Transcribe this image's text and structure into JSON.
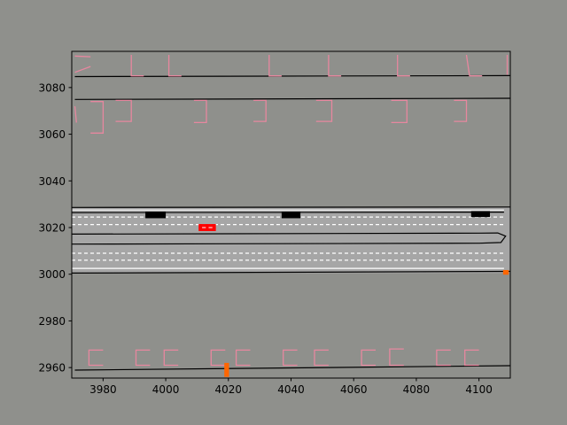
{
  "chart_data": {
    "type": "scatter",
    "title": "",
    "xlabel": "",
    "ylabel": "",
    "xlim": [
      3970,
      4110
    ],
    "ylim": [
      2955.5,
      3095.5
    ],
    "grid": false,
    "colors": {
      "background": "#8f908c",
      "road": "#a6a6a6",
      "road_edge": "#000000",
      "lane_divider": "#ffffff",
      "parking": "#e7879f",
      "ego_vehicle": "#ff0000",
      "other_vehicle": "#000000",
      "pedestrian": "#ff6600"
    },
    "x_ticks": [
      {
        "value": 3980,
        "label": "3980"
      },
      {
        "value": 4000,
        "label": "4000"
      },
      {
        "value": 4020,
        "label": "4020"
      },
      {
        "value": 4040,
        "label": "4040"
      },
      {
        "value": 4060,
        "label": "4060"
      },
      {
        "value": 4080,
        "label": "4080"
      },
      {
        "value": 4100,
        "label": "4100"
      }
    ],
    "y_ticks": [
      {
        "value": 2960,
        "label": "2960"
      },
      {
        "value": 2980,
        "label": "2980"
      },
      {
        "value": 3000,
        "label": "3000"
      },
      {
        "value": 3020,
        "label": "3020"
      },
      {
        "value": 3040,
        "label": "3040"
      },
      {
        "value": 3060,
        "label": "3060"
      },
      {
        "value": 3080,
        "label": "3080"
      }
    ],
    "road_band": {
      "x": [
        3970,
        4110
      ],
      "y": [
        3000.5,
        3028.6
      ]
    },
    "road_edges": [
      {
        "points": [
          [
            3971,
            3084.7
          ],
          [
            4110,
            3085.1
          ]
        ]
      },
      {
        "points": [
          [
            3971,
            3074.9
          ],
          [
            4110,
            3075.4
          ]
        ]
      },
      {
        "points": [
          [
            3970,
            3028.6
          ],
          [
            4110,
            3028.8
          ]
        ]
      },
      {
        "points": [
          [
            3970,
            3026.4
          ],
          [
            4108,
            3026.6
          ]
        ]
      },
      {
        "points": [
          [
            3970,
            3017.2
          ],
          [
            4100,
            3017.6
          ],
          [
            4106,
            3017.7
          ],
          [
            4108.5,
            3016.3
          ],
          [
            4107,
            3013.6
          ],
          [
            4100,
            3013.3
          ],
          [
            3970,
            3012.9
          ]
        ]
      },
      {
        "points": [
          [
            3970,
            3000.5
          ],
          [
            4110,
            3001.2
          ]
        ]
      },
      {
        "points": [
          [
            3971,
            2958.9
          ],
          [
            4110,
            2960.8
          ]
        ]
      }
    ],
    "lane_dividers": [
      {
        "style": "solid",
        "points": [
          [
            3970,
            3027.5
          ],
          [
            4108,
            3027.5
          ]
        ]
      },
      {
        "style": "dashed",
        "points": [
          [
            3970,
            3024.5
          ],
          [
            4108,
            3024.5
          ]
        ]
      },
      {
        "style": "dashed",
        "points": [
          [
            3970,
            3021.3
          ],
          [
            4108,
            3021.3
          ]
        ]
      },
      {
        "style": "dashed",
        "points": [
          [
            3970,
            3009.0
          ],
          [
            4108,
            3009.0
          ]
        ]
      },
      {
        "style": "dashed",
        "points": [
          [
            3970,
            3006.0
          ],
          [
            4108,
            3006.0
          ]
        ]
      },
      {
        "style": "solid",
        "points": [
          [
            3970,
            3002.5
          ],
          [
            4108,
            3002.5
          ]
        ]
      }
    ],
    "parking_lines": [
      {
        "points": [
          [
            3971,
            3093.5
          ],
          [
            3976,
            3093.2
          ]
        ]
      },
      {
        "points": [
          [
            3971,
            3086.5
          ],
          [
            3976,
            3089.0
          ]
        ]
      },
      {
        "points": [
          [
            3989,
            3094.0
          ],
          [
            3989,
            3085.0
          ],
          [
            3993,
            3085.0
          ]
        ]
      },
      {
        "points": [
          [
            4001,
            3094.0
          ],
          [
            4001,
            3085.0
          ],
          [
            4005,
            3085.0
          ]
        ]
      },
      {
        "points": [
          [
            4033,
            3094.0
          ],
          [
            4033,
            3085.0
          ],
          [
            4037,
            3085.0
          ]
        ]
      },
      {
        "points": [
          [
            4052,
            3094.0
          ],
          [
            4052,
            3085.0
          ],
          [
            4056,
            3085.0
          ]
        ]
      },
      {
        "points": [
          [
            4074,
            3094.0
          ],
          [
            4074,
            3085.0
          ],
          [
            4078,
            3085.0
          ]
        ]
      },
      {
        "points": [
          [
            4096,
            3094.0
          ],
          [
            4097,
            3085.0
          ],
          [
            4101,
            3085.0
          ]
        ]
      },
      {
        "points": [
          [
            4109,
            3094.0
          ],
          [
            4109,
            3085.5
          ]
        ]
      },
      {
        "points": [
          [
            3971,
            3072.0
          ],
          [
            3971.5,
            3065.0
          ]
        ]
      },
      {
        "points": [
          [
            3976,
            3074.0
          ],
          [
            3980,
            3074.0
          ],
          [
            3980,
            3060.5
          ],
          [
            3976,
            3060.5
          ]
        ]
      },
      {
        "points": [
          [
            3984,
            3074.5
          ],
          [
            3989,
            3074.5
          ],
          [
            3989,
            3065.5
          ],
          [
            3984,
            3065.5
          ]
        ]
      },
      {
        "points": [
          [
            4009,
            3074.5
          ],
          [
            4013,
            3074.5
          ],
          [
            4013,
            3065.0
          ],
          [
            4009,
            3065.0
          ]
        ]
      },
      {
        "points": [
          [
            4028,
            3074.5
          ],
          [
            4032,
            3074.5
          ],
          [
            4032,
            3065.5
          ],
          [
            4028,
            3065.5
          ]
        ]
      },
      {
        "points": [
          [
            4048,
            3074.5
          ],
          [
            4053,
            3074.5
          ],
          [
            4053,
            3065.5
          ],
          [
            4048,
            3065.5
          ]
        ]
      },
      {
        "points": [
          [
            4072,
            3074.5
          ],
          [
            4077,
            3074.5
          ],
          [
            4077,
            3065.0
          ],
          [
            4072,
            3065.0
          ]
        ]
      },
      {
        "points": [
          [
            4092,
            3074.5
          ],
          [
            4096,
            3074.5
          ],
          [
            4096,
            3065.5
          ],
          [
            4092,
            3065.5
          ]
        ]
      },
      {
        "points": [
          [
            3980,
            2961.0
          ],
          [
            3975.5,
            2961.0
          ],
          [
            3975.5,
            2967.5
          ],
          [
            3980,
            2967.5
          ]
        ]
      },
      {
        "points": [
          [
            3995,
            2961.0
          ],
          [
            3990.5,
            2961.0
          ],
          [
            3990.5,
            2967.5
          ],
          [
            3995,
            2967.5
          ]
        ]
      },
      {
        "points": [
          [
            4004,
            2961.0
          ],
          [
            3999.5,
            2961.0
          ],
          [
            3999.5,
            2967.5
          ],
          [
            4004,
            2967.5
          ]
        ]
      },
      {
        "points": [
          [
            4019,
            2961.0
          ],
          [
            4014.5,
            2961.0
          ],
          [
            4014.5,
            2967.5
          ],
          [
            4019,
            2967.5
          ]
        ]
      },
      {
        "points": [
          [
            4027,
            2961.0
          ],
          [
            4022.5,
            2961.0
          ],
          [
            4022.5,
            2967.5
          ],
          [
            4027,
            2967.5
          ]
        ]
      },
      {
        "points": [
          [
            4042,
            2961.0
          ],
          [
            4037.5,
            2961.0
          ],
          [
            4037.5,
            2967.5
          ],
          [
            4042,
            2967.5
          ]
        ]
      },
      {
        "points": [
          [
            4052,
            2961.0
          ],
          [
            4047.5,
            2961.0
          ],
          [
            4047.5,
            2967.5
          ],
          [
            4052,
            2967.5
          ]
        ]
      },
      {
        "points": [
          [
            4067,
            2961.0
          ],
          [
            4062.5,
            2961.0
          ],
          [
            4062.5,
            2967.5
          ],
          [
            4067,
            2967.5
          ]
        ]
      },
      {
        "points": [
          [
            4076,
            2961.0
          ],
          [
            4071.5,
            2961.0
          ],
          [
            4071.5,
            2968.0
          ],
          [
            4076,
            2968.0
          ]
        ]
      },
      {
        "points": [
          [
            4091,
            2961.0
          ],
          [
            4086.5,
            2961.0
          ],
          [
            4086.5,
            2967.5
          ],
          [
            4091,
            2967.5
          ]
        ]
      },
      {
        "points": [
          [
            4100,
            2961.0
          ],
          [
            4095.5,
            2961.0
          ],
          [
            4095.5,
            2967.5
          ],
          [
            4100,
            2967.5
          ]
        ]
      }
    ],
    "vehicles": [
      {
        "role": "other",
        "x": [
          3993.5,
          4000.0
        ],
        "y": [
          3024.0,
          3026.8
        ]
      },
      {
        "role": "other",
        "x": [
          4037.0,
          4043.0
        ],
        "y": [
          3024.0,
          3026.8
        ]
      },
      {
        "role": "other",
        "x": [
          4097.5,
          4103.5
        ],
        "y": [
          3024.5,
          3027.0
        ]
      },
      {
        "role": "ego",
        "x": [
          4010.5,
          4016.0
        ],
        "y": [
          3018.5,
          3021.5
        ]
      }
    ],
    "pedestrians": [
      {
        "x": [
          4018.7,
          4020.2
        ],
        "y": [
          2956.0,
          2962.0
        ]
      },
      {
        "x": [
          4107.7,
          4109.5
        ],
        "y": [
          2999.8,
          3001.8
        ]
      }
    ]
  }
}
